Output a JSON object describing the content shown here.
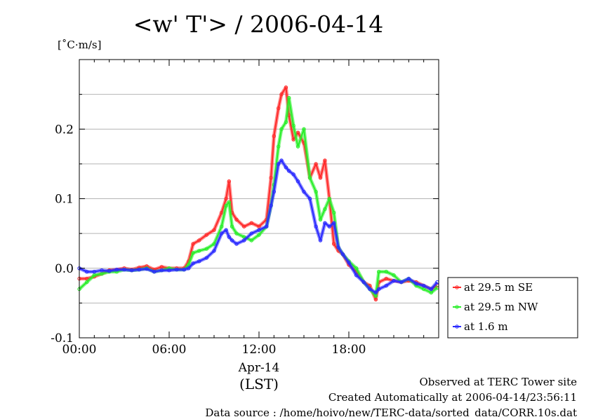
{
  "chart_data": {
    "type": "line",
    "title": "<w' T'> / 2006-04-14",
    "ylabel": "[˚C·m/s]",
    "xlabel_lines": [
      "Apr-14",
      "(LST)"
    ],
    "x_unit": "hour (LST)",
    "xlim": [
      0,
      24
    ],
    "ylim": [
      -0.1,
      0.3
    ],
    "x_ticks": [
      {
        "value": 0,
        "label": "00:00"
      },
      {
        "value": 6,
        "label": "06:00"
      },
      {
        "value": 12,
        "label": "12:00"
      },
      {
        "value": 18,
        "label": "18:00"
      }
    ],
    "y_ticks": [
      {
        "value": -0.1,
        "label": "-0.1"
      },
      {
        "value": 0.0,
        "label": "0.0"
      },
      {
        "value": 0.1,
        "label": "0.1"
      },
      {
        "value": 0.2,
        "label": "0.2"
      }
    ],
    "grid": true,
    "legend_position": "right",
    "series": [
      {
        "name": "at 29.5 m SE",
        "color": "#ff2a2a",
        "x": [
          0,
          0.5,
          1,
          1.5,
          2,
          2.5,
          3,
          3.5,
          4,
          4.5,
          5,
          5.5,
          6,
          6.5,
          7,
          7.3,
          7.6,
          8,
          8.5,
          9,
          9.5,
          9.8,
          10,
          10.2,
          10.5,
          11,
          11.5,
          12,
          12.5,
          12.8,
          13,
          13.3,
          13.5,
          13.8,
          14,
          14.3,
          14.6,
          15,
          15.4,
          15.8,
          16.1,
          16.4,
          16.7,
          17,
          17.3,
          17.6,
          18,
          18.5,
          19,
          19.4,
          19.8,
          20,
          20.5,
          21,
          21.5,
          22,
          22.5,
          23,
          23.5,
          23.9
        ],
        "y": [
          -0.015,
          -0.015,
          -0.012,
          -0.008,
          -0.003,
          -0.002,
          0.0,
          -0.002,
          0.001,
          0.003,
          -0.002,
          0.002,
          0.0,
          0.0,
          0.0,
          0.01,
          0.035,
          0.04,
          0.048,
          0.055,
          0.08,
          0.1,
          0.125,
          0.08,
          0.07,
          0.06,
          0.065,
          0.06,
          0.07,
          0.13,
          0.19,
          0.23,
          0.25,
          0.26,
          0.22,
          0.185,
          0.195,
          0.18,
          0.13,
          0.15,
          0.13,
          0.155,
          0.1,
          0.035,
          0.025,
          0.02,
          0.005,
          -0.005,
          -0.02,
          -0.025,
          -0.045,
          -0.02,
          -0.015,
          -0.018,
          -0.02,
          -0.018,
          -0.02,
          -0.025,
          -0.03,
          -0.025
        ]
      },
      {
        "name": "at 29.5 m NW",
        "color": "#2aee2a",
        "x": [
          0,
          0.5,
          1,
          1.5,
          2,
          2.5,
          3,
          3.5,
          4,
          4.5,
          5,
          5.5,
          6,
          6.5,
          7,
          7.3,
          7.6,
          8,
          8.5,
          9,
          9.5,
          9.8,
          10,
          10.2,
          10.5,
          11,
          11.5,
          12,
          12.5,
          12.8,
          13,
          13.3,
          13.5,
          13.8,
          14,
          14.3,
          14.6,
          15,
          15.4,
          15.8,
          16.1,
          16.4,
          16.7,
          17,
          17.3,
          17.6,
          18,
          18.5,
          19,
          19.4,
          19.8,
          20,
          20.5,
          21,
          21.5,
          22,
          22.5,
          23,
          23.5,
          23.9
        ],
        "y": [
          -0.03,
          -0.02,
          -0.01,
          -0.008,
          -0.005,
          -0.005,
          -0.002,
          -0.003,
          -0.002,
          0.0,
          -0.005,
          -0.003,
          0.0,
          -0.002,
          -0.002,
          0.005,
          0.022,
          0.025,
          0.028,
          0.035,
          0.06,
          0.09,
          0.095,
          0.06,
          0.05,
          0.045,
          0.04,
          0.048,
          0.06,
          0.09,
          0.12,
          0.175,
          0.2,
          0.21,
          0.245,
          0.205,
          0.175,
          0.2,
          0.13,
          0.11,
          0.07,
          0.085,
          0.1,
          0.08,
          0.03,
          0.02,
          0.01,
          0.0,
          -0.02,
          -0.03,
          -0.04,
          -0.005,
          -0.005,
          -0.01,
          -0.02,
          -0.015,
          -0.025,
          -0.03,
          -0.035,
          -0.028
        ]
      },
      {
        "name": "at 1.6 m",
        "color": "#2a2aff",
        "x": [
          0,
          0.5,
          1,
          1.5,
          2,
          2.5,
          3,
          3.5,
          4,
          4.5,
          5,
          5.5,
          6,
          6.5,
          7,
          7.3,
          7.6,
          8,
          8.5,
          9,
          9.5,
          9.8,
          10,
          10.2,
          10.5,
          11,
          11.5,
          12,
          12.5,
          12.8,
          13,
          13.3,
          13.5,
          13.8,
          14,
          14.3,
          14.6,
          15,
          15.4,
          15.8,
          16.1,
          16.4,
          16.7,
          17,
          17.3,
          17.6,
          18,
          18.5,
          19,
          19.4,
          19.8,
          20,
          20.5,
          21,
          21.5,
          22,
          22.5,
          23,
          23.5,
          23.9
        ],
        "y": [
          0.0,
          -0.005,
          -0.005,
          -0.003,
          -0.004,
          -0.002,
          -0.002,
          -0.003,
          -0.002,
          -0.001,
          -0.005,
          -0.003,
          -0.003,
          -0.002,
          -0.002,
          0.0,
          0.007,
          0.01,
          0.015,
          0.025,
          0.05,
          0.055,
          0.045,
          0.04,
          0.035,
          0.04,
          0.05,
          0.055,
          0.06,
          0.09,
          0.11,
          0.15,
          0.155,
          0.145,
          0.14,
          0.135,
          0.125,
          0.11,
          0.1,
          0.06,
          0.04,
          0.065,
          0.06,
          0.065,
          0.03,
          0.02,
          0.008,
          -0.01,
          -0.02,
          -0.03,
          -0.035,
          -0.03,
          -0.025,
          -0.018,
          -0.02,
          -0.015,
          -0.022,
          -0.025,
          -0.03,
          -0.02
        ]
      }
    ]
  },
  "footer": {
    "line1": "Observed at TERC Tower site",
    "line2": "Created Automatically at 2006-04-14/23:56:11",
    "line3": "Data source : /home/hoivo/new/TERC-data/sorted_data/CORR.10s.dat"
  }
}
